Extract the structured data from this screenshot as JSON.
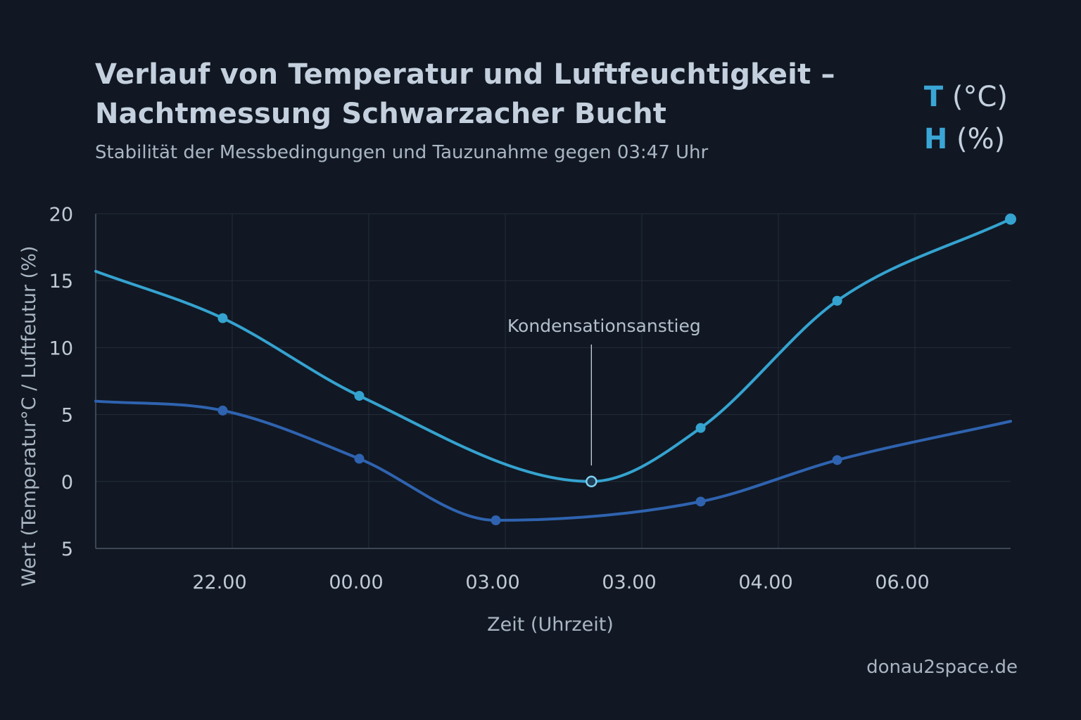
{
  "chart_data": {
    "type": "line",
    "title_lines": [
      "Verlauf von Temperatur und Luftfeuchtigkeit –",
      "Nachtmessung Schwarzacher Bucht"
    ],
    "subtitle": "Stabilität der Messbedingungen und Tauzunahme gegen 03:47 Uhr",
    "xlabel": "Zeit (Uhrzeit)",
    "ylabel": "Wert (Temperatur°C / Luftfeutur (%)",
    "x_tick_labels": [
      "22.00",
      "00.00",
      "03.00",
      "03.00",
      "04.00",
      "06.00"
    ],
    "y_tick_labels": [
      "20",
      "15",
      "10",
      "5",
      "0",
      "5"
    ],
    "y_tick_values": [
      20,
      15,
      10,
      5,
      0,
      -5
    ],
    "ylim": [
      -5,
      20
    ],
    "xlim": [
      0,
      6.7
    ],
    "legend_position": "top-right",
    "legend": [
      {
        "code": "T",
        "unit": "(°C)"
      },
      {
        "code": "H",
        "unit": "(%)"
      }
    ],
    "series": [
      {
        "color": "#35a3d0",
        "x": [
          0,
          0.93,
          1.93,
          3.63,
          4.43,
          5.43,
          6.7
        ],
        "y": [
          15.7,
          12.2,
          6.4,
          0,
          4.0,
          13.5,
          19.6
        ],
        "marker_index": [
          1,
          2,
          3,
          4,
          5,
          6
        ],
        "highlight_index": 3
      },
      {
        "color": "#2f63b0",
        "x": [
          0,
          0.93,
          1.93,
          2.93,
          4.43,
          5.43,
          6.7
        ],
        "y": [
          6.0,
          5.3,
          1.7,
          -2.9,
          -1.5,
          1.6,
          4.5
        ],
        "marker_index": [
          1,
          2,
          3,
          4,
          5
        ]
      }
    ],
    "annotations": [
      {
        "text": "Kondensationsanstieg",
        "x": 3.63,
        "y": 0.5
      }
    ]
  },
  "credit": "donau2space.de",
  "colors": {
    "background": "#111823",
    "grid": "#222c38",
    "axis": "#4a5666"
  }
}
